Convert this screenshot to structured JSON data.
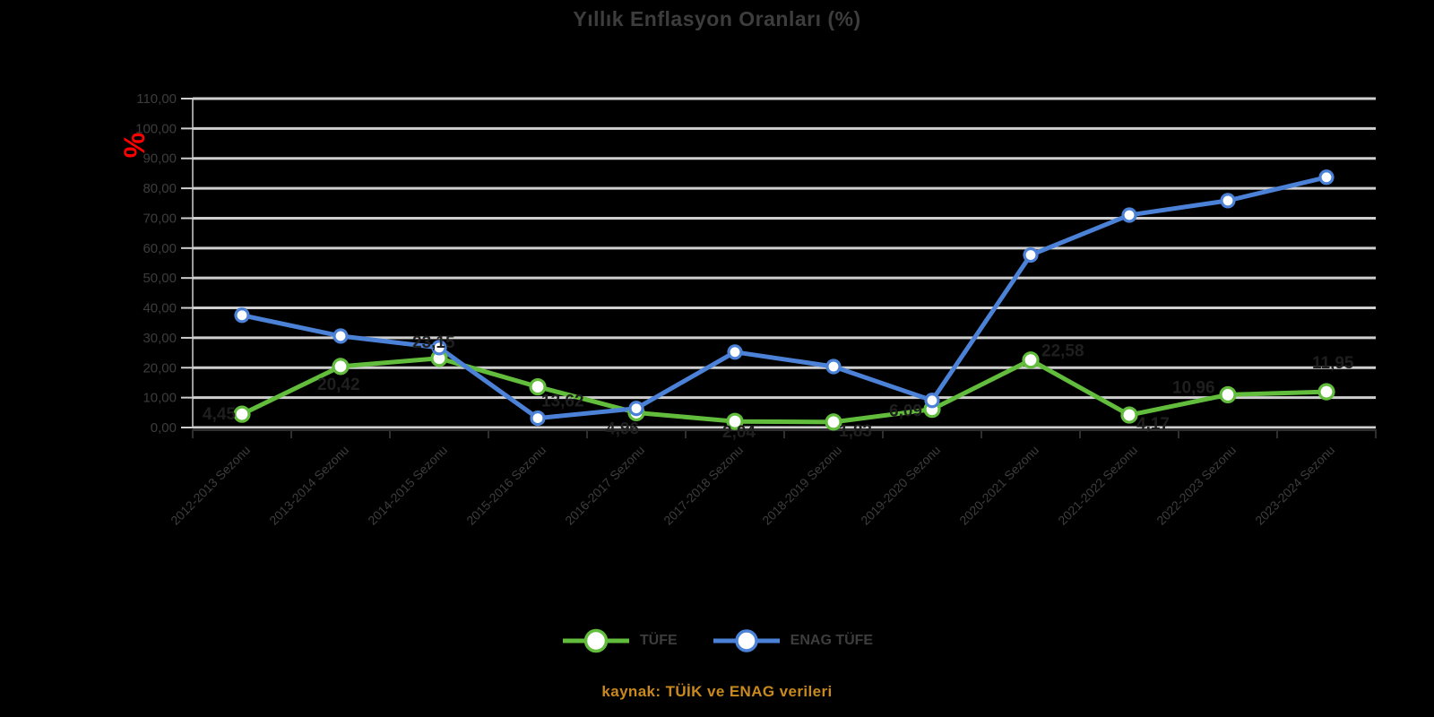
{
  "title": "Yıllık Enflasyon Oranları (%)",
  "y_axis": {
    "unit_symbol": "%",
    "min": 0,
    "max": 110,
    "step": 10,
    "tick_labels": [
      "0,00",
      "10,00",
      "20,00",
      "30,00",
      "40,00",
      "50,00",
      "60,00",
      "70,00",
      "80,00",
      "90,00",
      "100,00",
      "110,00"
    ]
  },
  "x_axis": {
    "categories": [
      "2012-2013 Sezonu",
      "2013-2014 Sezonu",
      "2014-2015 Sezonu",
      "2015-2016 Sezonu",
      "2016-2017 Sezonu",
      "2017-2018 Sezonu",
      "2018-2019 Sezonu",
      "2019-2020 Sezonu",
      "2020-2021 Sezonu",
      "2021-2022 Sezonu",
      "2022-2023 Sezonu",
      "2023-2024 Sezonu"
    ]
  },
  "chart_data": {
    "type": "line",
    "categories": [
      "2012-2013 Sezonu",
      "2013-2014 Sezonu",
      "2014-2015 Sezonu",
      "2015-2016 Sezonu",
      "2016-2017 Sezonu",
      "2017-2018 Sezonu",
      "2018-2019 Sezonu",
      "2019-2020 Sezonu",
      "2020-2021 Sezonu",
      "2021-2022 Sezonu",
      "2022-2023 Sezonu",
      "2023-2024 Sezonu"
    ],
    "series": [
      {
        "name": "TÜFE",
        "color": "#62bd3c",
        "values": [
          4.45,
          20.42,
          23.15,
          13.62,
          4.96,
          2.04,
          1.83,
          6.09,
          22.58,
          4.17,
          10.96,
          11.95
        ],
        "point_labels": [
          "4,45",
          "20,42",
          "23,15",
          "13,62",
          "4,96",
          "2,04",
          "1,83",
          "6,09",
          "22,58",
          "4,17",
          "10,96",
          "11,95"
        ],
        "show_point_labels": true
      },
      {
        "name": "ENAG TÜFE",
        "color": "#4b82d7",
        "values": [
          37.54,
          30.59,
          26.71,
          3.12,
          6.38,
          25.24,
          20.38,
          9.06,
          57.68,
          71.04,
          75.87,
          83.69
        ],
        "point_labels": [],
        "show_point_labels": false
      }
    ],
    "title": "Yıllık Enflasyon Oranları (%)",
    "xlabel": "",
    "ylabel": "%",
    "ylim": [
      0,
      110
    ],
    "y_step": 10,
    "grid": true,
    "legend_position": "bottom"
  },
  "legend": {
    "items": [
      {
        "label": "TÜFE",
        "color": "#62bd3c"
      },
      {
        "label": "ENAG TÜFE",
        "color": "#4b82d7"
      }
    ]
  },
  "caption": {
    "text": "kaynak: TÜİK ve ENAG verileri"
  },
  "colors": {
    "background": "#000000",
    "grid": "#cfcfcf",
    "axis": "#2f2f2f",
    "text": "#3d3d3d",
    "data_label": "#1f1f1f",
    "unit_red": "#ff0000",
    "caption_orange": "#c9891c",
    "series_green": "#62bd3c",
    "series_blue": "#4b82d7",
    "marker_fill": "#ffffff"
  }
}
